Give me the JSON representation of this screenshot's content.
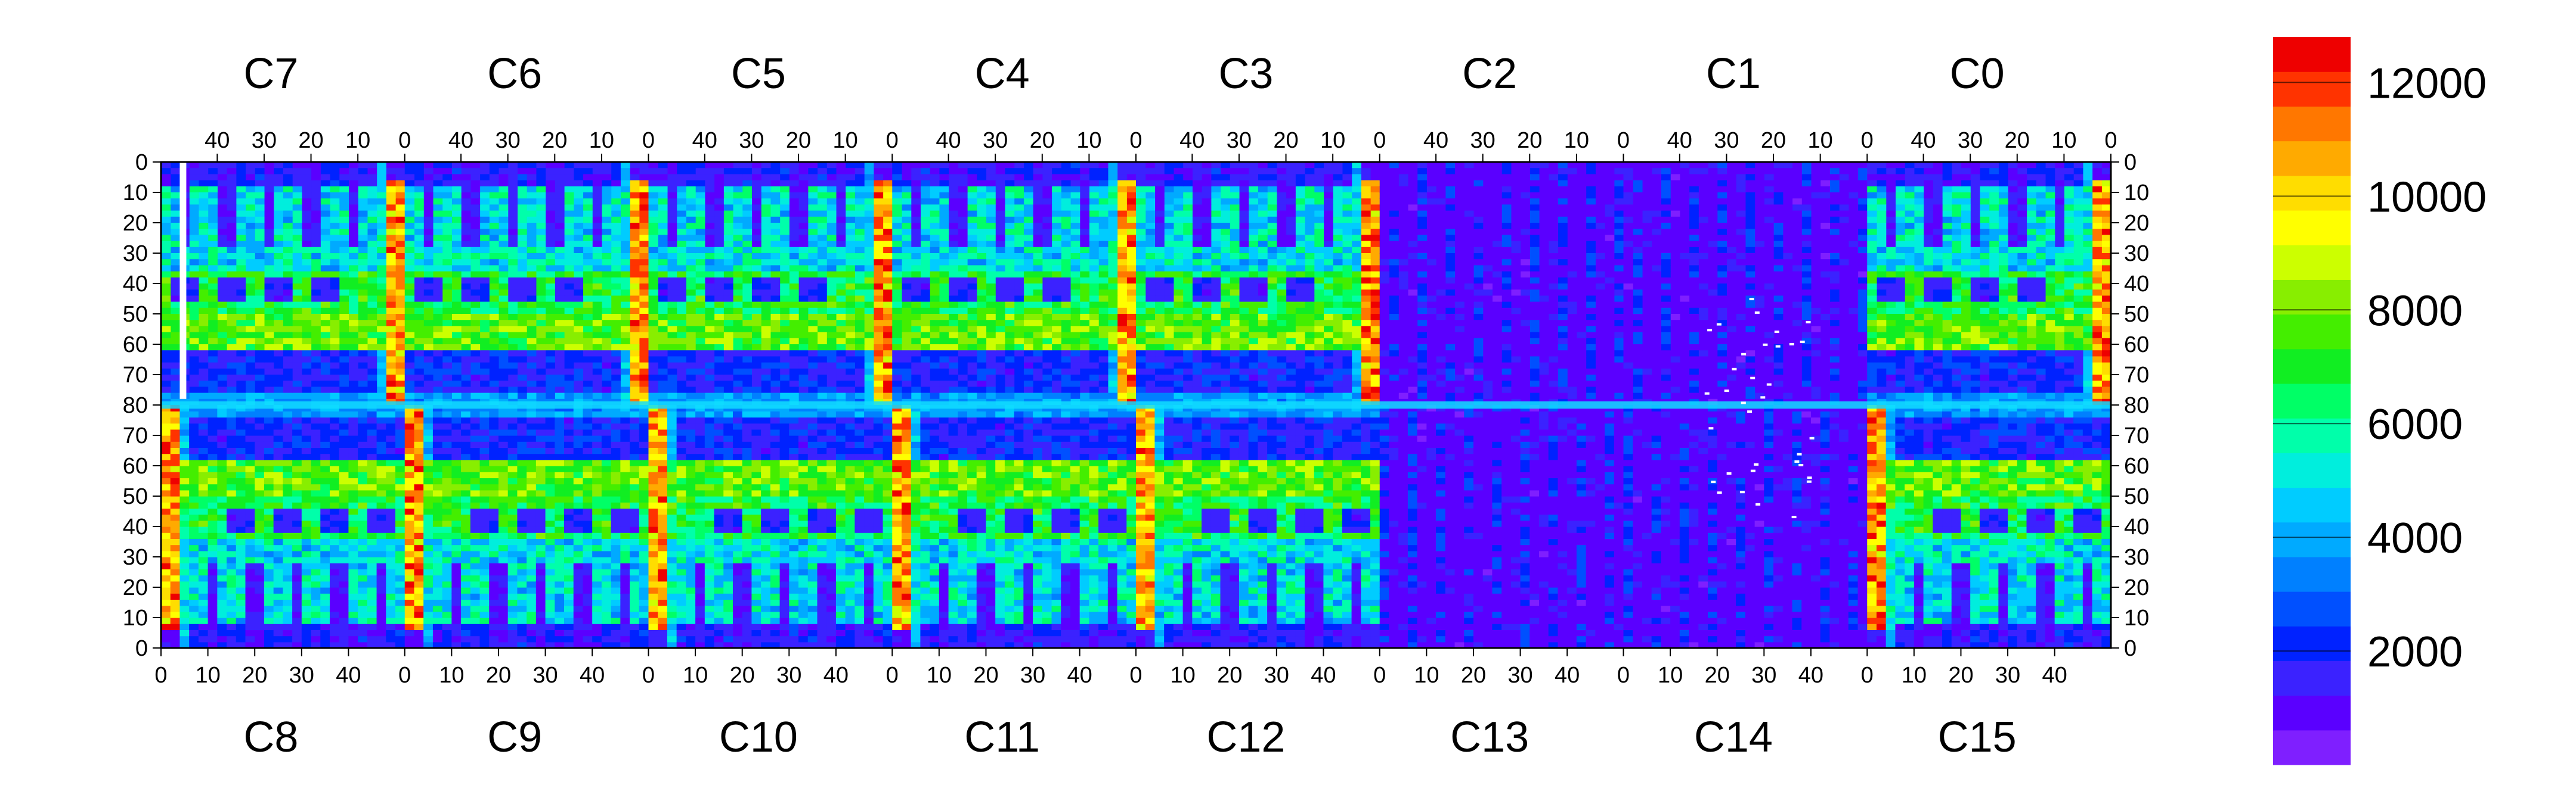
{
  "chart_data": {
    "type": "heatmap",
    "title": "",
    "xlabel": "",
    "ylabel": "",
    "top_chips": [
      "C7",
      "C6",
      "C5",
      "C4",
      "C3",
      "C2",
      "C1",
      "C0"
    ],
    "bottom_chips": [
      "C8",
      "C9",
      "C10",
      "C11",
      "C12",
      "C13",
      "C14",
      "C15"
    ],
    "top_x_ticks": [
      40,
      30,
      20,
      10,
      0
    ],
    "bottom_x_ticks": [
      0,
      10,
      20,
      30,
      40
    ],
    "y_ticks": [
      0,
      10,
      20,
      30,
      40,
      50,
      60,
      70,
      80,
      70,
      60,
      50,
      40,
      30,
      20,
      10,
      0
    ],
    "chip_columns": 52,
    "chip_rows": 80,
    "zrange": [
      0,
      12800
    ],
    "colorbar": {
      "ticks": [
        12000,
        10000,
        8000,
        6000,
        4000,
        2000
      ],
      "colors": [
        "#7f1fff",
        "#5a00ff",
        "#3b22ff",
        "#0022ff",
        "#0050ff",
        "#0080ff",
        "#00aaff",
        "#00ccff",
        "#00eedd",
        "#00ffaa",
        "#00ff66",
        "#11ee22",
        "#44ee00",
        "#88ee00",
        "#ccff00",
        "#ffff00",
        "#ffdd00",
        "#ffaa00",
        "#ff7700",
        "#ff3300",
        "#ee0000"
      ]
    },
    "cells": {
      "hot_columns": [
        0,
        1,
        2,
        3
      ],
      "dead_column_top": 47,
      "low_chips": [
        "C13",
        "C14"
      ],
      "cold_squares_per_chip": 4,
      "noisy_pixels": 34
    }
  }
}
